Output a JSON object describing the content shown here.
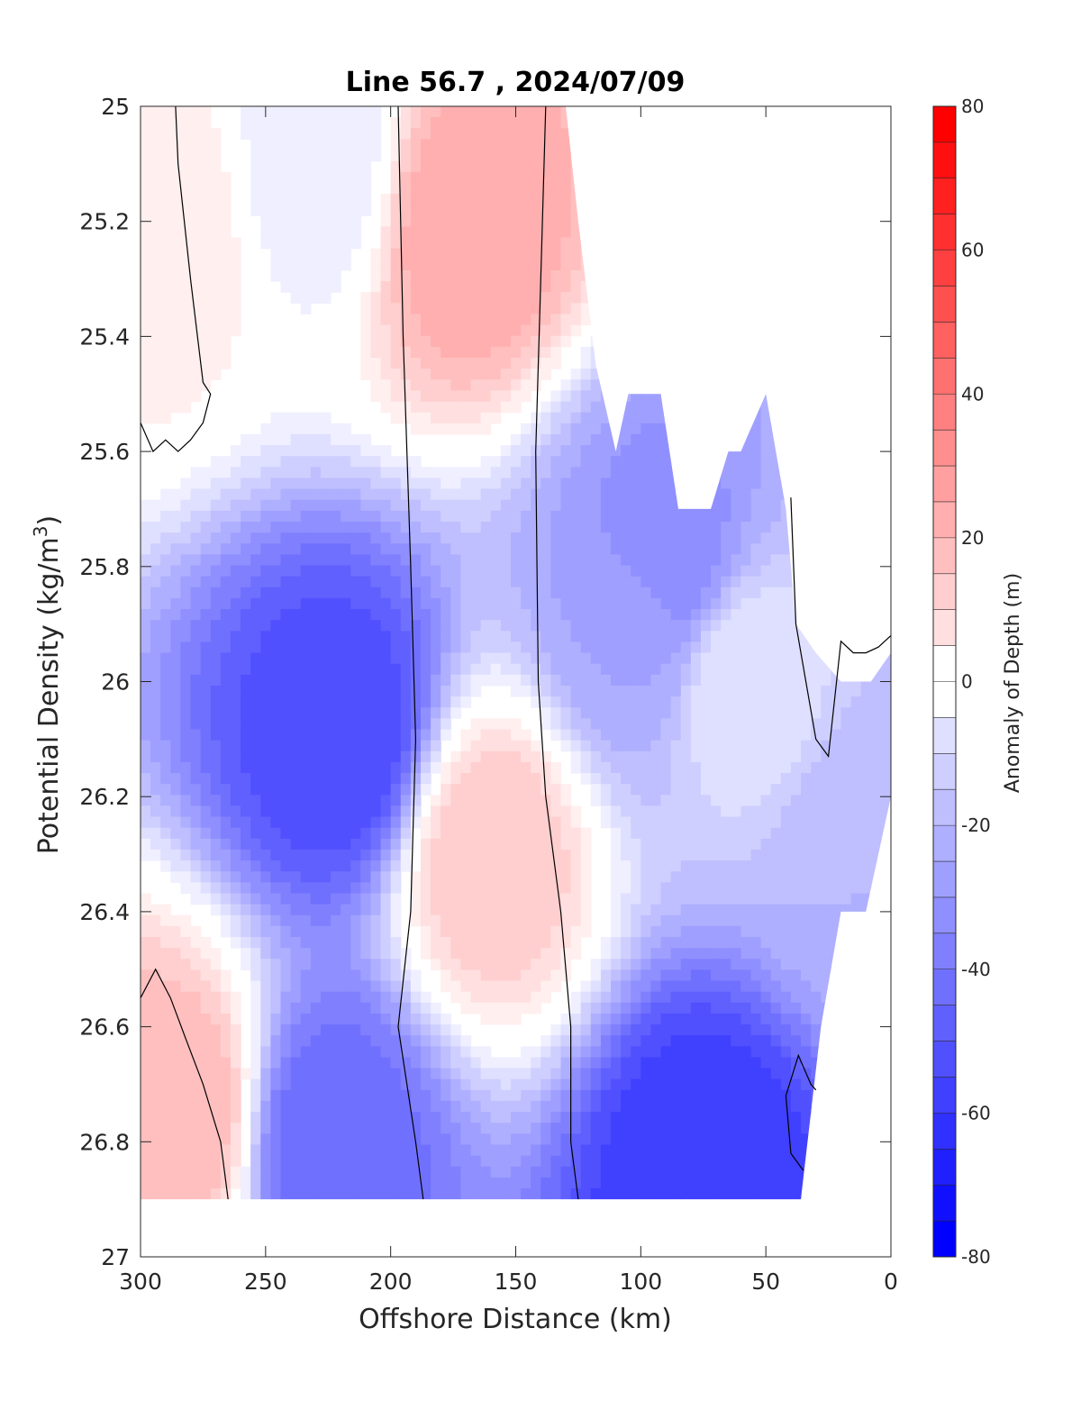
{
  "chart_data": {
    "type": "contourf",
    "title": "Line 56.7 , 2024/07/09",
    "xlabel": "Offshore Distance (km)",
    "ylabel_main": "Potential Density (kg/m",
    "ylabel_sup": "3",
    "ylabel_close": ")",
    "xlim": [
      300,
      0
    ],
    "ylim": [
      27,
      25
    ],
    "x_reversed": true,
    "y_reversed": true,
    "x_ticks": [
      300,
      250,
      200,
      150,
      100,
      50,
      0
    ],
    "x_tick_labels": [
      "300",
      "250",
      "200",
      "150",
      "100",
      "50",
      "0"
    ],
    "y_ticks": [
      25,
      25.2,
      25.4,
      25.6,
      25.8,
      26,
      26.2,
      26.4,
      26.6,
      26.8,
      27
    ],
    "y_tick_labels": [
      "25",
      "25.2",
      "25.4",
      "25.6",
      "25.8",
      "26",
      "26.2",
      "26.4",
      "26.6",
      "26.8",
      "27"
    ],
    "grid": false,
    "colorbar": {
      "label": "Anomaly of Depth (m)",
      "min": -80,
      "max": 80,
      "step": 5,
      "ticks": [
        80,
        60,
        40,
        20,
        0,
        -20,
        -40,
        -60,
        -80
      ],
      "tick_labels": [
        "80",
        "60",
        "40",
        "20",
        "0",
        "-20",
        "-40",
        "-60",
        "-80"
      ],
      "colormap": "blue-white-red",
      "low_color": "#0000ff",
      "zero_color": "#ffffff",
      "high_color": "#ff0000"
    },
    "data_extent": {
      "x_range": [
        300,
        0
      ],
      "y_range": [
        25,
        26.9
      ],
      "no_data_region": "upper right (x < 130 km, sigma < 25.7)"
    },
    "zero_contour": "black line",
    "features": [
      {
        "x": 290,
        "y": 25.2,
        "value": 10
      },
      {
        "x": 230,
        "y": 25.1,
        "value": -10
      },
      {
        "x": 220,
        "y": 26.1,
        "value": -60
      },
      {
        "x": 225,
        "y": 26.8,
        "value": -50
      },
      {
        "x": 170,
        "y": 25.2,
        "value": 30
      },
      {
        "x": 160,
        "y": 26.3,
        "value": 20
      },
      {
        "x": 100,
        "y": 25.9,
        "value": -30
      },
      {
        "x": 90,
        "y": 25.8,
        "value": -40
      },
      {
        "x": 75,
        "y": 26.85,
        "value": -65
      },
      {
        "x": 60,
        "y": 26.0,
        "value": -10
      },
      {
        "x": 285,
        "y": 26.75,
        "value": 25
      },
      {
        "x": 10,
        "y": 26.3,
        "value": -25
      }
    ]
  }
}
